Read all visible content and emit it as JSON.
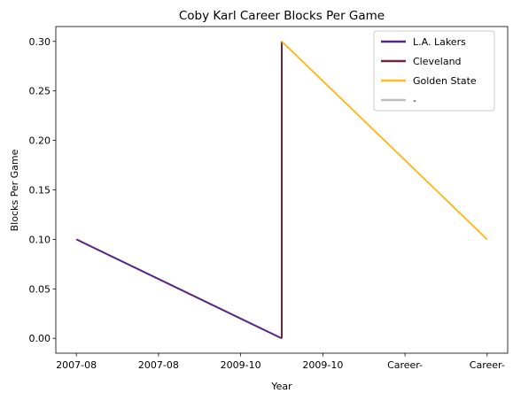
{
  "chart_data": {
    "type": "line",
    "title": "Coby Karl Career Blocks Per Game",
    "xlabel": "Year",
    "ylabel": "Blocks Per Game",
    "x_tick_labels": [
      "2007-08",
      "2007-08",
      "2009-10",
      "2009-10",
      "Career-",
      "Career-"
    ],
    "ylim": [
      -0.015,
      0.315
    ],
    "y_ticks": [
      0.0,
      0.05,
      0.1,
      0.15,
      0.2,
      0.25,
      0.3
    ],
    "y_tick_labels": [
      "0.00",
      "0.05",
      "0.10",
      "0.15",
      "0.20",
      "0.25",
      "0.30"
    ],
    "grid": false,
    "legend_position": "top-right",
    "series": [
      {
        "name": "L.A. Lakers",
        "color": "#552583",
        "points": [
          [
            0,
            0.1
          ],
          [
            2.5,
            0.0
          ]
        ]
      },
      {
        "name": "Cleveland",
        "color": "#6F263D",
        "points": [
          [
            2.5,
            0.0
          ],
          [
            2.5,
            0.3
          ]
        ]
      },
      {
        "name": "Golden State",
        "color": "#FDB927",
        "points": [
          [
            2.5,
            0.3
          ],
          [
            5,
            0.1
          ]
        ]
      },
      {
        "name": "-",
        "color": "#BEBEBE",
        "points": []
      }
    ]
  }
}
